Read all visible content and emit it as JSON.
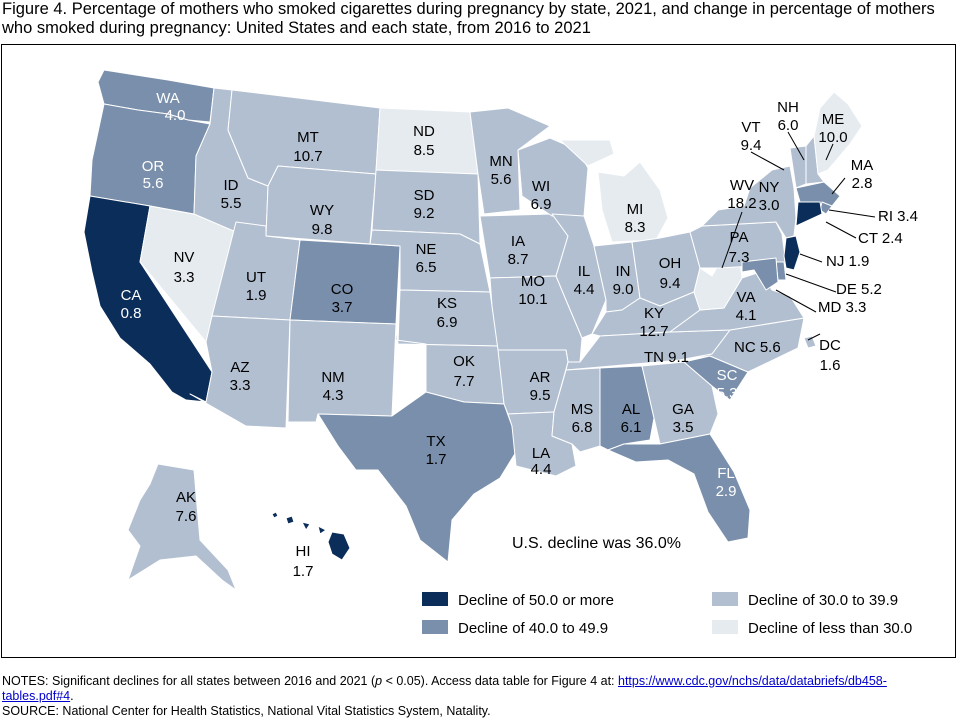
{
  "title": "Figure 4.  Percentage of mothers who smoked cigarettes during pregnancy by state, 2021, and change in percentage of mothers who smoked during pregnancy: United States and each state, from 2016 to 2021",
  "colors": {
    "c50": "#0b2d5a",
    "c40": "#7a8fab",
    "c30": "#b2bfd0",
    "c0": "#e6ebf0",
    "border": "#ffffff",
    "text_dark": "#000000",
    "text_light": "#ffffff"
  },
  "us_decline": "U.S. decline was 36.0%",
  "legend": [
    {
      "key": "c50",
      "label": "Decline of 50.0 or more"
    },
    {
      "key": "c40",
      "label": "Decline of 40.0 to 49.9"
    },
    {
      "key": "c30",
      "label": "Decline of 30.0 to 39.9"
    },
    {
      "key": "c0",
      "label": "Decline of less than 30.0"
    }
  ],
  "states": [
    {
      "abbr": "WA",
      "value": "4.0",
      "cat": "c40"
    },
    {
      "abbr": "OR",
      "value": "5.6",
      "cat": "c40"
    },
    {
      "abbr": "CA",
      "value": "0.8",
      "cat": "c50"
    },
    {
      "abbr": "NV",
      "value": "3.3",
      "cat": "c0"
    },
    {
      "abbr": "ID",
      "value": "5.5",
      "cat": "c30"
    },
    {
      "abbr": "MT",
      "value": "10.7",
      "cat": "c30"
    },
    {
      "abbr": "WY",
      "value": "9.8",
      "cat": "c30"
    },
    {
      "abbr": "UT",
      "value": "1.9",
      "cat": "c30"
    },
    {
      "abbr": "AZ",
      "value": "3.3",
      "cat": "c30"
    },
    {
      "abbr": "CO",
      "value": "3.7",
      "cat": "c40"
    },
    {
      "abbr": "NM",
      "value": "4.3",
      "cat": "c30"
    },
    {
      "abbr": "ND",
      "value": "8.5",
      "cat": "c0"
    },
    {
      "abbr": "SD",
      "value": "9.2",
      "cat": "c30"
    },
    {
      "abbr": "NE",
      "value": "6.5",
      "cat": "c30"
    },
    {
      "abbr": "KS",
      "value": "6.9",
      "cat": "c30"
    },
    {
      "abbr": "OK",
      "value": "7.7",
      "cat": "c30"
    },
    {
      "abbr": "TX",
      "value": "1.7",
      "cat": "c40"
    },
    {
      "abbr": "MN",
      "value": "5.6",
      "cat": "c30"
    },
    {
      "abbr": "IA",
      "value": "8.7",
      "cat": "c30"
    },
    {
      "abbr": "MO",
      "value": "10.1",
      "cat": "c30"
    },
    {
      "abbr": "AR",
      "value": "9.5",
      "cat": "c30"
    },
    {
      "abbr": "LA",
      "value": "4.4",
      "cat": "c30"
    },
    {
      "abbr": "WI",
      "value": "6.9",
      "cat": "c30"
    },
    {
      "abbr": "IL",
      "value": "4.4",
      "cat": "c30"
    },
    {
      "abbr": "MI",
      "value": "8.3",
      "cat": "c0"
    },
    {
      "abbr": "IN",
      "value": "9.0",
      "cat": "c30"
    },
    {
      "abbr": "OH",
      "value": "9.4",
      "cat": "c30"
    },
    {
      "abbr": "KY",
      "value": "12.7",
      "cat": "c30"
    },
    {
      "abbr": "TN",
      "value": "9.1",
      "cat": "c30"
    },
    {
      "abbr": "MS",
      "value": "6.8",
      "cat": "c30"
    },
    {
      "abbr": "AL",
      "value": "6.1",
      "cat": "c40"
    },
    {
      "abbr": "GA",
      "value": "3.5",
      "cat": "c30"
    },
    {
      "abbr": "FL",
      "value": "2.9",
      "cat": "c40"
    },
    {
      "abbr": "SC",
      "value": "5.3",
      "cat": "c40"
    },
    {
      "abbr": "NC",
      "value": "5.6",
      "cat": "c30"
    },
    {
      "abbr": "VA",
      "value": "4.1",
      "cat": "c30"
    },
    {
      "abbr": "WV",
      "value": "18.2",
      "cat": "c0"
    },
    {
      "abbr": "PA",
      "value": "7.3",
      "cat": "c30"
    },
    {
      "abbr": "NY",
      "value": "3.0",
      "cat": "c30"
    },
    {
      "abbr": "VT",
      "value": "9.4",
      "cat": "c30"
    },
    {
      "abbr": "NH",
      "value": "6.0",
      "cat": "c30"
    },
    {
      "abbr": "ME",
      "value": "10.0",
      "cat": "c0"
    },
    {
      "abbr": "MA",
      "value": "2.8",
      "cat": "c40"
    },
    {
      "abbr": "RI",
      "value": "3.4",
      "cat": "c40"
    },
    {
      "abbr": "CT",
      "value": "2.4",
      "cat": "c50"
    },
    {
      "abbr": "NJ",
      "value": "1.9",
      "cat": "c50"
    },
    {
      "abbr": "DE",
      "value": "5.2",
      "cat": "c40"
    },
    {
      "abbr": "MD",
      "value": "3.3",
      "cat": "c40"
    },
    {
      "abbr": "DC",
      "value": "1.6",
      "cat": "c30"
    },
    {
      "abbr": "AK",
      "value": "7.6",
      "cat": "c30"
    },
    {
      "abbr": "HI",
      "value": "1.7",
      "cat": "c50"
    }
  ],
  "notes": {
    "line1_prefix": "NOTES: Significant declines for all states between 2016 and 2021 (",
    "p_symbol": "p",
    "line1_mid": " < 0.05). Access data table for Figure 4 at: ",
    "link": "https://www.cdc.gov/nchs/data/databriefs/db458-tables.pdf#4",
    "line1_suffix": ".",
    "source": "SOURCE: National Center for Health Statistics, National Vital Statistics System, Natality."
  }
}
